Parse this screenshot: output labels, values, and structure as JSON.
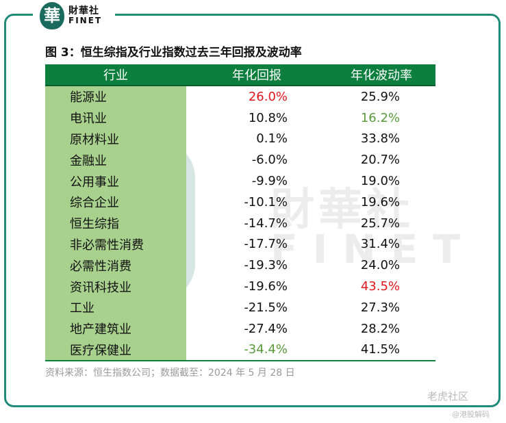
{
  "brand": {
    "seal_char": "華",
    "name_cn": "財華社",
    "name_en": "FINET"
  },
  "figure": {
    "title": "图 3：恒生综指及行业指数过去三年回报及波动率"
  },
  "table": {
    "headers": [
      "行业",
      "年化回报",
      "年化波动率"
    ],
    "rows": [
      {
        "industry": "能源业",
        "return": "26.0%",
        "volatility": "25.9%",
        "return_color": "red",
        "vol_color": ""
      },
      {
        "industry": "电讯业",
        "return": "10.8%",
        "volatility": "16.2%",
        "return_color": "",
        "vol_color": "green"
      },
      {
        "industry": "原材料业",
        "return": "0.1%",
        "volatility": "33.8%",
        "return_color": "",
        "vol_color": ""
      },
      {
        "industry": "金融业",
        "return": "-6.0%",
        "volatility": "20.7%",
        "return_color": "",
        "vol_color": ""
      },
      {
        "industry": "公用事业",
        "return": "-9.9%",
        "volatility": "19.0%",
        "return_color": "",
        "vol_color": ""
      },
      {
        "industry": "综合企业",
        "return": "-10.1%",
        "volatility": "19.6%",
        "return_color": "",
        "vol_color": ""
      },
      {
        "industry": "恒生综指",
        "return": "-14.7%",
        "volatility": "25.7%",
        "return_color": "",
        "vol_color": ""
      },
      {
        "industry": "非必需性消费",
        "return": "-17.7%",
        "volatility": "31.4%",
        "return_color": "",
        "vol_color": ""
      },
      {
        "industry": "必需性消费",
        "return": "-19.3%",
        "volatility": "24.0%",
        "return_color": "",
        "vol_color": ""
      },
      {
        "industry": "资讯科技业",
        "return": "-19.6%",
        "volatility": "43.5%",
        "return_color": "",
        "vol_color": "red"
      },
      {
        "industry": "工业",
        "return": "-21.5%",
        "volatility": "27.3%",
        "return_color": "",
        "vol_color": ""
      },
      {
        "industry": "地产建筑业",
        "return": "-27.4%",
        "volatility": "28.2%",
        "return_color": "",
        "vol_color": ""
      },
      {
        "industry": "医疗保健业",
        "return": "-34.4%",
        "volatility": "41.5%",
        "return_color": "green",
        "vol_color": ""
      }
    ]
  },
  "source": "资料来源：恒生指数公司；数据截至：2024 年 5 月 28 日",
  "watermark": {
    "cn": "財華社",
    "en": "FINET",
    "platform": "老虎社区",
    "handle": "@港股解码"
  },
  "colors": {
    "header_bg": "#0c7f3e",
    "industry_col_bg": "#a9d18e",
    "highlight_red": "#e3151c",
    "highlight_green": "#5a9a3c",
    "frame": "#1f8a78"
  }
}
